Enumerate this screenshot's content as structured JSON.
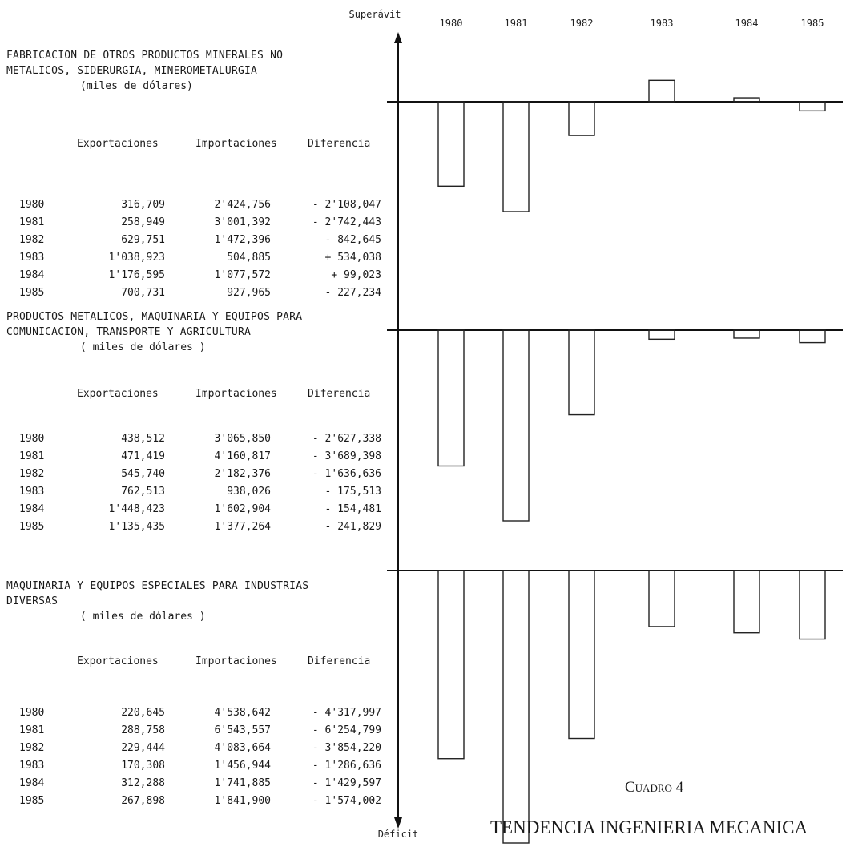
{
  "chart_axis": {
    "top_label": "Superávit",
    "bottom_label": "Déficit",
    "years": [
      "1980",
      "1981",
      "1982",
      "1983",
      "1984",
      "1985"
    ]
  },
  "caption": {
    "cuadro": "Cuadro 4",
    "title": "TENDENCIA INGENIERIA MECANICA"
  },
  "sections": [
    {
      "title": "FABRICACION DE OTROS PRODUCTOS MINERALES NO\nMETALICOS, SIDERURGIA, MINEROMETALURGIA",
      "unit": "(miles de dólares)",
      "headers": [
        "Exportaciones",
        "Importaciones",
        "Diferencia"
      ],
      "rows": [
        {
          "year": "1980",
          "exp": "316,709",
          "imp": "2'424,756",
          "dif": "- 2'108,047"
        },
        {
          "year": "1981",
          "exp": "258,949",
          "imp": "3'001,392",
          "dif": "- 2'742,443"
        },
        {
          "year": "1982",
          "exp": "629,751",
          "imp": "1'472,396",
          "dif": "- 842,645"
        },
        {
          "year": "1983",
          "exp": "1'038,923",
          "imp": "504,885",
          "dif": "+ 534,038"
        },
        {
          "year": "1984",
          "exp": "1'176,595",
          "imp": "1'077,572",
          "dif": "+ 99,023"
        },
        {
          "year": "1985",
          "exp": "700,731",
          "imp": "927,965",
          "dif": "- 227,234"
        }
      ]
    },
    {
      "title": "PRODUCTOS METALICOS, MAQUINARIA Y EQUIPOS PARA\nCOMUNICACION, TRANSPORTE Y AGRICULTURA",
      "unit": "( miles de dólares )",
      "headers": [
        "Exportaciones",
        "Importaciones",
        "Diferencia"
      ],
      "rows": [
        {
          "year": "1980",
          "exp": "438,512",
          "imp": "3'065,850",
          "dif": "- 2'627,338"
        },
        {
          "year": "1981",
          "exp": "471,419",
          "imp": "4'160,817",
          "dif": "- 3'689,398"
        },
        {
          "year": "1982",
          "exp": "545,740",
          "imp": "2'182,376",
          "dif": "- 1'636,636"
        },
        {
          "year": "1983",
          "exp": "762,513",
          "imp": "938,026",
          "dif": "- 175,513"
        },
        {
          "year": "1984",
          "exp": "1'448,423",
          "imp": "1'602,904",
          "dif": "- 154,481"
        },
        {
          "year": "1985",
          "exp": "1'135,435",
          "imp": "1'377,264",
          "dif": "- 241,829"
        }
      ]
    },
    {
      "title": "MAQUINARIA Y EQUIPOS ESPECIALES PARA INDUSTRIAS\nDIVERSAS",
      "unit": "( miles de dólares )",
      "headers": [
        "Exportaciones",
        "Importaciones",
        "Diferencia"
      ],
      "rows": [
        {
          "year": "1980",
          "exp": "220,645",
          "imp": "4'538,642",
          "dif": "- 4'317,997"
        },
        {
          "year": "1981",
          "exp": "288,758",
          "imp": "6'543,557",
          "dif": "- 6'254,799"
        },
        {
          "year": "1982",
          "exp": "229,444",
          "imp": "4'083,664",
          "dif": "- 3'854,220"
        },
        {
          "year": "1983",
          "exp": "170,308",
          "imp": "1'456,944",
          "dif": "- 1'286,636"
        },
        {
          "year": "1984",
          "exp": "312,288",
          "imp": "1'741,885",
          "dif": "- 1'429,597"
        },
        {
          "year": "1985",
          "exp": "267,898",
          "imp": "1'841,900",
          "dif": "- 1'574,002"
        }
      ]
    }
  ],
  "chart_data": [
    {
      "type": "bar",
      "categories": [
        "1980",
        "1981",
        "1982",
        "1983",
        "1984",
        "1985"
      ],
      "series": [
        {
          "values": [
            -2108047,
            -2742443,
            -842645,
            534038,
            99023,
            -227234
          ]
        }
      ]
    },
    {
      "type": "bar",
      "categories": [
        "1980",
        "1981",
        "1982",
        "1983",
        "1984",
        "1985"
      ],
      "series": [
        {
          "values": [
            -2627338,
            -3689398,
            -1636636,
            -175513,
            -154481,
            -241829
          ]
        }
      ]
    },
    {
      "type": "bar",
      "categories": [
        "1980",
        "1981",
        "1982",
        "1983",
        "1984",
        "1985"
      ],
      "series": [
        {
          "values": [
            -4317997,
            -6254799,
            -3854220,
            -1286636,
            -1429597,
            -1574002
          ]
        }
      ]
    }
  ]
}
